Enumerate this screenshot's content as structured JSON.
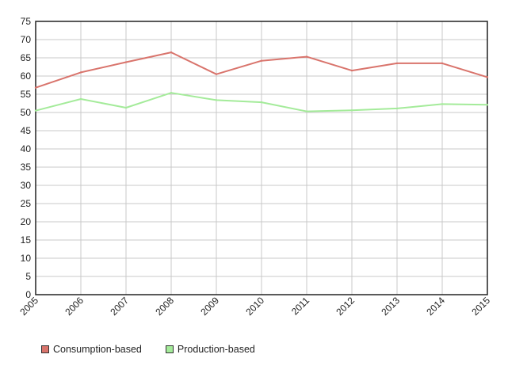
{
  "chart_data": {
    "type": "line",
    "title": "",
    "xlabel": "",
    "ylabel": "",
    "x": [
      "2005",
      "2006",
      "2007",
      "2008",
      "2009",
      "2010",
      "2011",
      "2012",
      "2013",
      "2014",
      "2015"
    ],
    "ylim": [
      0,
      75
    ],
    "yticks": [
      0,
      5,
      10,
      15,
      20,
      25,
      30,
      35,
      40,
      45,
      50,
      55,
      60,
      65,
      70,
      75
    ],
    "grid": true,
    "legend_position": "bottom-left",
    "series": [
      {
        "name": "Consumption-based",
        "color": "#d9746c",
        "values": [
          56.8,
          61.0,
          63.8,
          66.5,
          60.5,
          64.2,
          65.3,
          61.5,
          63.5,
          63.5,
          59.7
        ]
      },
      {
        "name": "Production-based",
        "color": "#a4eb9a",
        "values": [
          50.5,
          53.7,
          51.3,
          55.4,
          53.4,
          52.8,
          50.3,
          50.6,
          51.1,
          52.3,
          52.1
        ]
      }
    ]
  }
}
